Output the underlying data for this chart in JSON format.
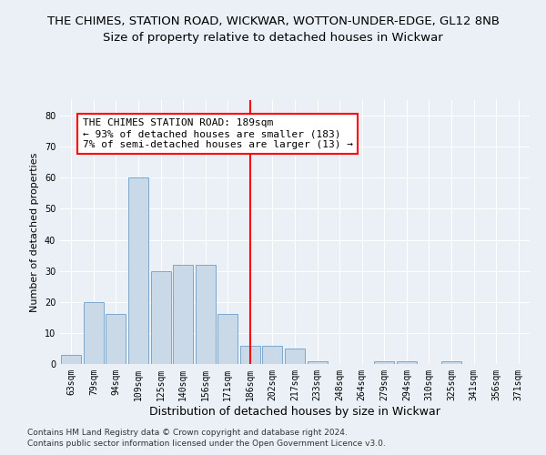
{
  "title1": "THE CHIMES, STATION ROAD, WICKWAR, WOTTON-UNDER-EDGE, GL12 8NB",
  "title2": "Size of property relative to detached houses in Wickwar",
  "xlabel": "Distribution of detached houses by size in Wickwar",
  "ylabel": "Number of detached properties",
  "footer1": "Contains HM Land Registry data © Crown copyright and database right 2024.",
  "footer2": "Contains public sector information licensed under the Open Government Licence v3.0.",
  "annotation_line1": "THE CHIMES STATION ROAD: 189sqm",
  "annotation_line2": "← 93% of detached houses are smaller (183)",
  "annotation_line3": "7% of semi-detached houses are larger (13) →",
  "bar_labels": [
    "63sqm",
    "79sqm",
    "94sqm",
    "109sqm",
    "125sqm",
    "140sqm",
    "156sqm",
    "171sqm",
    "186sqm",
    "202sqm",
    "217sqm",
    "233sqm",
    "248sqm",
    "264sqm",
    "279sqm",
    "294sqm",
    "310sqm",
    "325sqm",
    "341sqm",
    "356sqm",
    "371sqm"
  ],
  "bar_values": [
    3,
    20,
    16,
    60,
    30,
    32,
    32,
    16,
    6,
    6,
    5,
    1,
    0,
    0,
    1,
    1,
    0,
    1,
    0,
    0,
    0
  ],
  "bar_color": "#c9d9e8",
  "bar_edge_color": "#7aa8cc",
  "redline_index": 8,
  "ylim": [
    0,
    85
  ],
  "yticks": [
    0,
    10,
    20,
    30,
    40,
    50,
    60,
    70,
    80
  ],
  "bg_color": "#eaf0f6",
  "plot_bg_color": "#eaf0f6",
  "grid_color": "#ffffff",
  "title1_fontsize": 9.5,
  "title2_fontsize": 9.5,
  "annotation_fontsize": 8,
  "tick_fontsize": 7,
  "xlabel_fontsize": 9,
  "ylabel_fontsize": 8,
  "footer_fontsize": 6.5
}
